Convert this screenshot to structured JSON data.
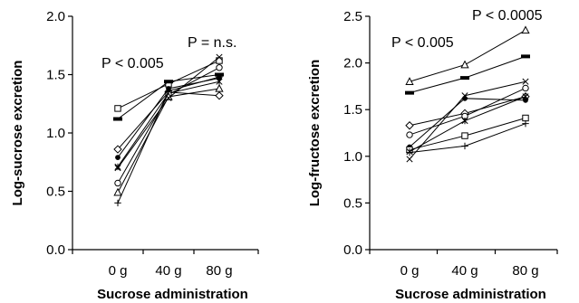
{
  "chart_data": [
    {
      "type": "line",
      "xlabel": "Sucrose administration",
      "ylabel": "Log-sucrose excretion",
      "categories": [
        "0 g",
        "40 g",
        "80 g"
      ],
      "ylim": [
        0,
        2.0
      ],
      "yticks": [
        "0.0",
        "0.5",
        "1.0",
        "1.5",
        "2.0"
      ],
      "annotations": [
        {
          "text": "P < 0.005",
          "between": "0 g-40 g"
        },
        {
          "text": "P = n.s.",
          "between": "40 g-80 g"
        }
      ],
      "series": [
        {
          "marker": "square",
          "values": [
            1.21,
            1.42,
            1.62
          ]
        },
        {
          "marker": "dash",
          "values": [
            1.12,
            1.44,
            1.5
          ]
        },
        {
          "marker": "diamond",
          "values": [
            0.86,
            1.35,
            1.32
          ]
        },
        {
          "marker": "dot",
          "values": [
            0.79,
            1.38,
            1.47
          ]
        },
        {
          "marker": "star",
          "values": [
            0.71,
            1.34,
            1.44
          ]
        },
        {
          "marker": "circle",
          "values": [
            0.57,
            1.33,
            1.56
          ]
        },
        {
          "marker": "triangle",
          "values": [
            0.49,
            1.31,
            1.38
          ]
        },
        {
          "marker": "plus",
          "values": [
            0.4,
            1.36,
            1.48
          ]
        },
        {
          "marker": "x",
          "values": [
            0.7,
            1.3,
            1.65
          ]
        }
      ]
    },
    {
      "type": "line",
      "xlabel": "Sucrose administration",
      "ylabel": "Log-fructose excretion",
      "categories": [
        "0 g",
        "40 g",
        "80 g"
      ],
      "ylim": [
        0,
        2.5
      ],
      "yticks": [
        "0.0",
        "0.5",
        "1.0",
        "1.5",
        "2.0",
        "2.5"
      ],
      "annotations": [
        {
          "text": "P < 0.005",
          "between": "0 g-40 g"
        },
        {
          "text": "P < 0.0005",
          "between": "40 g-80 g"
        }
      ],
      "series": [
        {
          "marker": "triangle",
          "values": [
            1.8,
            1.98,
            2.35
          ]
        },
        {
          "marker": "dash",
          "values": [
            1.68,
            1.84,
            2.07
          ]
        },
        {
          "marker": "diamond",
          "values": [
            1.33,
            1.46,
            1.64
          ]
        },
        {
          "marker": "circle",
          "values": [
            1.23,
            1.43,
            1.73
          ]
        },
        {
          "marker": "dot",
          "values": [
            1.1,
            1.62,
            1.6
          ]
        },
        {
          "marker": "square",
          "values": [
            1.07,
            1.22,
            1.41
          ]
        },
        {
          "marker": "x",
          "values": [
            0.97,
            1.65,
            1.8
          ]
        },
        {
          "marker": "star",
          "values": [
            1.05,
            1.38,
            1.64
          ]
        },
        {
          "marker": "plus",
          "values": [
            1.04,
            1.11,
            1.35
          ]
        }
      ]
    }
  ]
}
